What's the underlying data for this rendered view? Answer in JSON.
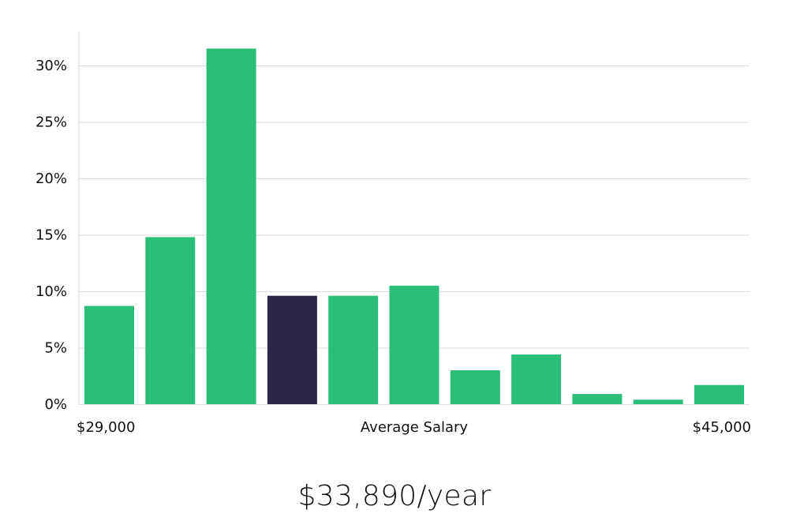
{
  "chart_data": {
    "type": "bar",
    "title": "",
    "xlabel": "Average Salary",
    "ylabel": "",
    "x_start_label": "$29,000",
    "x_end_label": "$45,000",
    "values": [
      8.7,
      14.8,
      31.5,
      9.6,
      9.6,
      10.5,
      3.0,
      4.4,
      0.9,
      0.4,
      1.7
    ],
    "highlight_index": 3,
    "ylim": [
      0,
      33
    ],
    "yticks": [
      0,
      5,
      10,
      15,
      20,
      25,
      30
    ],
    "ytick_labels": [
      "0%",
      "5%",
      "10%",
      "15%",
      "20%",
      "25%",
      "30%"
    ],
    "grid": true,
    "colors": {
      "bar": "#2abf78",
      "highlight": "#29254a",
      "grid": "#dddddd",
      "axis": "#d6d6d6"
    }
  },
  "summary": {
    "salary_text": "$33,890/year"
  }
}
